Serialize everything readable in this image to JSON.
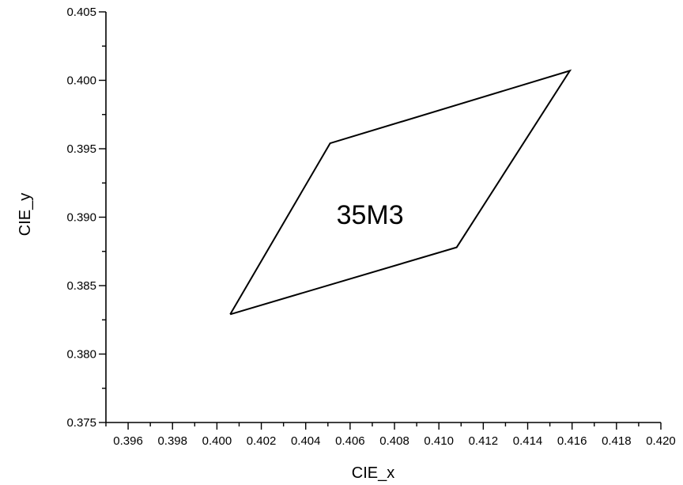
{
  "chart_data": {
    "type": "line",
    "title": "",
    "xlabel": "CIE_x",
    "ylabel": "CIE_y",
    "xlim": [
      0.395,
      0.42
    ],
    "ylim": [
      0.375,
      0.405
    ],
    "x_major_ticks": [
      0.396,
      0.398,
      0.4,
      0.402,
      0.404,
      0.406,
      0.408,
      0.41,
      0.412,
      0.414,
      0.416,
      0.418,
      0.42
    ],
    "x_tick_labels": [
      "0.396",
      "0.398",
      "0.400",
      "0.402",
      "0.404",
      "0.406",
      "0.408",
      "0.410",
      "0.412",
      "0.414",
      "0.416",
      "0.418",
      "0.420"
    ],
    "y_major_ticks": [
      0.375,
      0.38,
      0.385,
      0.39,
      0.395,
      0.4,
      0.405
    ],
    "y_tick_labels": [
      "0.375",
      "0.380",
      "0.385",
      "0.390",
      "0.395",
      "0.400",
      "0.405"
    ],
    "grid": false,
    "series": [
      {
        "closed": true,
        "x": [
          0.4006,
          0.4051,
          0.4159,
          0.4108,
          0.4006
        ],
        "y": [
          0.3829,
          0.3954,
          0.4007,
          0.3878,
          0.3829
        ]
      }
    ],
    "annotations": [
      {
        "text": "35M3",
        "x": 0.4069,
        "y": 0.3902
      }
    ]
  }
}
